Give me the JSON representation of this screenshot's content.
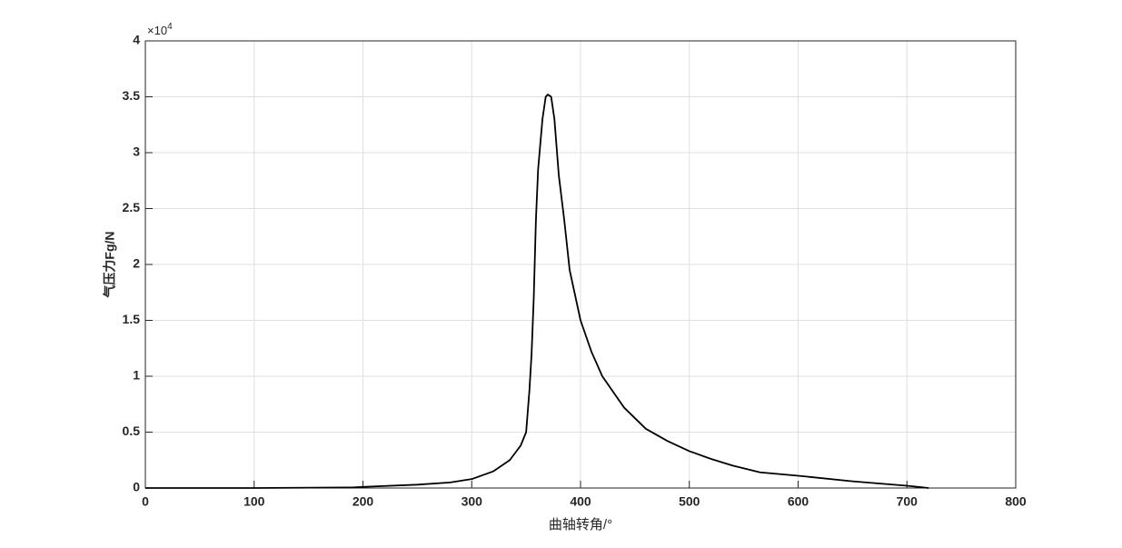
{
  "chart_data": {
    "type": "line",
    "x_label": "曲轴转角/°",
    "y_label": "气压力Fg/N",
    "y_multiplier": {
      "base": "×10",
      "exponent": "4"
    },
    "xlim": [
      0,
      800
    ],
    "xticks": [
      0,
      100,
      200,
      300,
      400,
      500,
      600,
      700,
      800
    ],
    "ylim": [
      0,
      4
    ],
    "yticks": [
      0,
      0.5,
      1,
      1.5,
      2,
      2.5,
      3,
      3.5,
      4
    ],
    "grid": true,
    "series": [
      {
        "color": "#000000",
        "x": [
          0,
          100,
          190,
          200,
          250,
          280,
          300,
          320,
          335,
          345,
          350,
          353,
          355,
          357,
          359,
          361,
          365,
          368,
          370,
          373,
          376,
          380,
          385,
          390,
          400,
          410,
          420,
          440,
          460,
          480,
          500,
          520,
          540,
          565,
          600,
          650,
          700,
          720
        ],
        "values": [
          0,
          0,
          0.005,
          0.01,
          0.03,
          0.05,
          0.08,
          0.15,
          0.25,
          0.38,
          0.5,
          0.87,
          1.2,
          1.7,
          2.4,
          2.85,
          3.3,
          3.5,
          3.52,
          3.5,
          3.3,
          2.8,
          2.4,
          1.95,
          1.5,
          1.22,
          1.0,
          0.72,
          0.53,
          0.42,
          0.33,
          0.26,
          0.2,
          0.14,
          0.11,
          0.06,
          0.02,
          0
        ]
      }
    ]
  }
}
